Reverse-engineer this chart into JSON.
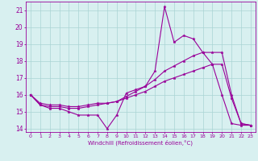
{
  "xlabel": "Windchill (Refroidissement éolien,°C)",
  "x": [
    0,
    1,
    2,
    3,
    4,
    5,
    6,
    7,
    8,
    9,
    10,
    11,
    12,
    13,
    14,
    15,
    16,
    17,
    18,
    19,
    20,
    21,
    22,
    23
  ],
  "line1": [
    16.0,
    15.4,
    15.2,
    15.2,
    15.0,
    14.8,
    14.8,
    14.8,
    14.0,
    14.8,
    16.1,
    16.3,
    16.5,
    17.4,
    21.2,
    19.1,
    19.5,
    19.3,
    18.5,
    17.8,
    16.0,
    14.3,
    14.2,
    14.2
  ],
  "line2": [
    16.0,
    15.4,
    15.3,
    15.3,
    15.2,
    15.2,
    15.3,
    15.4,
    15.5,
    15.6,
    15.9,
    16.2,
    16.5,
    16.9,
    17.4,
    17.7,
    18.0,
    18.3,
    18.5,
    18.5,
    18.5,
    16.0,
    14.3,
    14.2
  ],
  "line3": [
    16.0,
    15.5,
    15.4,
    15.4,
    15.3,
    15.3,
    15.4,
    15.5,
    15.5,
    15.6,
    15.8,
    16.0,
    16.2,
    16.5,
    16.8,
    17.0,
    17.2,
    17.4,
    17.6,
    17.8,
    17.8,
    15.8,
    14.3,
    14.2
  ],
  "line_color": "#990099",
  "bg_color": "#d8f0f0",
  "grid_color": "#aad4d4",
  "ylim": [
    13.8,
    21.5
  ],
  "yticks": [
    14,
    15,
    16,
    17,
    18,
    19,
    20,
    21
  ],
  "xticks": [
    0,
    1,
    2,
    3,
    4,
    5,
    6,
    7,
    8,
    9,
    10,
    11,
    12,
    13,
    14,
    15,
    16,
    17,
    18,
    19,
    20,
    21,
    22,
    23
  ],
  "marker": "*",
  "marker_size": 2.5,
  "linewidth": 0.8
}
